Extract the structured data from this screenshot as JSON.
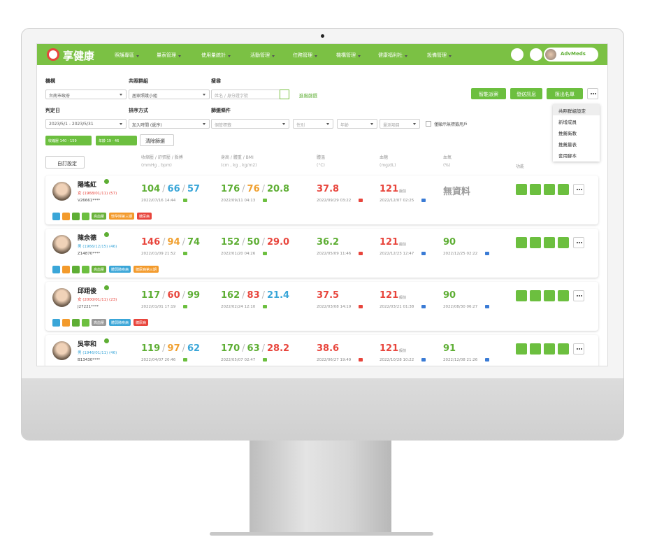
{
  "nav": {
    "logo": "享健康",
    "menu": [
      "照護專區",
      "量表管理",
      "使用量統計",
      "活動管理",
      "任務管理",
      "機構管理",
      "健康福利社",
      "設備管理"
    ],
    "user": "AdvMeds"
  },
  "filters": {
    "row1": [
      {
        "label": "機構",
        "value": "台南市政府"
      },
      {
        "label": "共照群組",
        "value": "居家照護小組"
      },
      {
        "label": "搜尋",
        "value": "姓名 / 身分證字號"
      }
    ],
    "advanced": "進階篩選",
    "row2": [
      {
        "label": "判定日",
        "value": "2023/5/1 - 2023/5/31"
      },
      {
        "label": "排序方式",
        "value": "加入時間 (遞序)"
      },
      {
        "label": "篩選條件",
        "value": "個管標籤"
      }
    ],
    "selects": [
      "性別",
      "年齡",
      "量測項目"
    ],
    "checkbox": "僅顯示無標籤用戶"
  },
  "actions": [
    "智能派案",
    "發送訊息",
    "匯出名單"
  ],
  "more_menu": [
    "共照群組設定",
    "新增成員",
    "推薦衛教",
    "推薦量表",
    "套用腳本"
  ],
  "chips": [
    "收縮壓 140 - 159",
    "年齡 19 - 46"
  ],
  "clear_filter": "清除篩選",
  "table": {
    "settings": "自訂設定",
    "separator": "/",
    "columns": [
      {
        "title": "收縮壓 / 舒張壓 / 脈搏",
        "unit": "(mmHg , bpm)"
      },
      {
        "title": "身高 / 體重 / BMI",
        "unit": "(cm , kg , kg/m2)"
      },
      {
        "title": "體溫",
        "unit": "(°C)"
      },
      {
        "title": "血糖",
        "unit": "(mg/dL)"
      },
      {
        "title": "血氧",
        "unit": "(%)"
      }
    ],
    "function_label": "功能"
  },
  "patients": [
    {
      "name": "陽瑤紅",
      "info": "女 (1968/01/11) (57)",
      "info_color": "#e8453c",
      "id": "V26661****",
      "bp": {
        "values": [
          "104",
          "66",
          "57"
        ],
        "colors": [
          "#5eae34",
          "#3aa6d8",
          "#3aa6d8"
        ],
        "date": "2022/07/16 14:44"
      },
      "hw": {
        "values": [
          "176",
          "76",
          "20.8"
        ],
        "colors": [
          "#5eae34",
          "#f0a030",
          "#5eae34"
        ],
        "date": "2022/09/11 04:13"
      },
      "temp": {
        "value": "37.8",
        "color": "#e8453c",
        "date": "2022/09/29 03:22"
      },
      "glucose": {
        "value": "121",
        "note": "飯前",
        "color": "#e8453c",
        "date": "2022/12/07 02:25"
      },
      "spo2": {
        "value": "無資料",
        "color": "#9a9a9a"
      },
      "tags": [
        {
          "label": "高血壓",
          "color": "#6ab23a"
        },
        {
          "label": "懷孕婦第三期",
          "color": "#f39a2b"
        },
        {
          "label": "糖尿病",
          "color": "#e8453c"
        }
      ]
    },
    {
      "name": "陳余德",
      "info": "男 (1966/12/15) (46)",
      "info_color": "#3aa6d8",
      "id": "Z14870****",
      "bp": {
        "values": [
          "146",
          "94",
          "74"
        ],
        "colors": [
          "#e8453c",
          "#f0a030",
          "#5eae34"
        ],
        "date": "2022/01/09 21:52"
      },
      "hw": {
        "values": [
          "152",
          "50",
          "29.0"
        ],
        "colors": [
          "#5eae34",
          "#5eae34",
          "#e8453c"
        ],
        "date": "2022/01/20 04:26"
      },
      "temp": {
        "value": "36.2",
        "color": "#5eae34",
        "date": "2022/05/09 11:46"
      },
      "glucose": {
        "value": "121",
        "note": "飯前",
        "color": "#e8453c",
        "date": "2022/12/23 12:47"
      },
      "spo2": {
        "value": "90",
        "color": "#5eae34",
        "date": "2022/12/25 02:22"
      },
      "tags": [
        {
          "label": "高血壓",
          "color": "#6ab23a"
        },
        {
          "label": "體弱肺疾病",
          "color": "#3aa6d8"
        },
        {
          "label": "糖尿病第三期",
          "color": "#f39a2b"
        }
      ]
    },
    {
      "name": "邱翊俊",
      "info": "女 (2000/01/11) (23)",
      "info_color": "#e8453c",
      "id": "J27221****",
      "bp": {
        "values": [
          "117",
          "60",
          "99"
        ],
        "colors": [
          "#5eae34",
          "#e8453c",
          "#5eae34"
        ],
        "date": "2022/01/01 17:19"
      },
      "hw": {
        "values": [
          "162",
          "83",
          "21.4"
        ],
        "colors": [
          "#5eae34",
          "#e8453c",
          "#3aa6d8"
        ],
        "date": "2022/02/24 12:10"
      },
      "temp": {
        "value": "37.5",
        "color": "#e8453c",
        "date": "2022/03/08 14:19"
      },
      "glucose": {
        "value": "121",
        "note": "飯前",
        "color": "#e8453c",
        "date": "2022/03/21 01:38"
      },
      "spo2": {
        "value": "90",
        "color": "#5eae34",
        "date": "2022/08/30 06:27"
      },
      "tags": [
        {
          "label": "高血壓",
          "color": "#999999"
        },
        {
          "label": "體弱肺疾病",
          "color": "#3aa6d8"
        },
        {
          "label": "糖尿病",
          "color": "#e8453c"
        }
      ]
    },
    {
      "name": "吳宰和",
      "info": "男 (1946/01/11) (46)",
      "info_color": "#3aa6d8",
      "id": "B13430****",
      "bp": {
        "values": [
          "119",
          "97",
          "62"
        ],
        "colors": [
          "#5eae34",
          "#f0a030",
          "#3aa6d8"
        ],
        "date": "2022/04/07 20:46"
      },
      "hw": {
        "values": [
          "170",
          "63",
          "28.2"
        ],
        "colors": [
          "#5eae34",
          "#5eae34",
          "#e8453c"
        ],
        "date": "2022/05/07 02:47"
      },
      "temp": {
        "value": "38.6",
        "color": "#e8453c",
        "date": "2022/06/27 19:49"
      },
      "glucose": {
        "value": "121",
        "note": "飯前",
        "color": "#e8453c",
        "date": "2022/10/28 10:22"
      },
      "spo2": {
        "value": "91",
        "color": "#5eae34",
        "date": "2022/12/08 21:26"
      },
      "tags": []
    }
  ]
}
